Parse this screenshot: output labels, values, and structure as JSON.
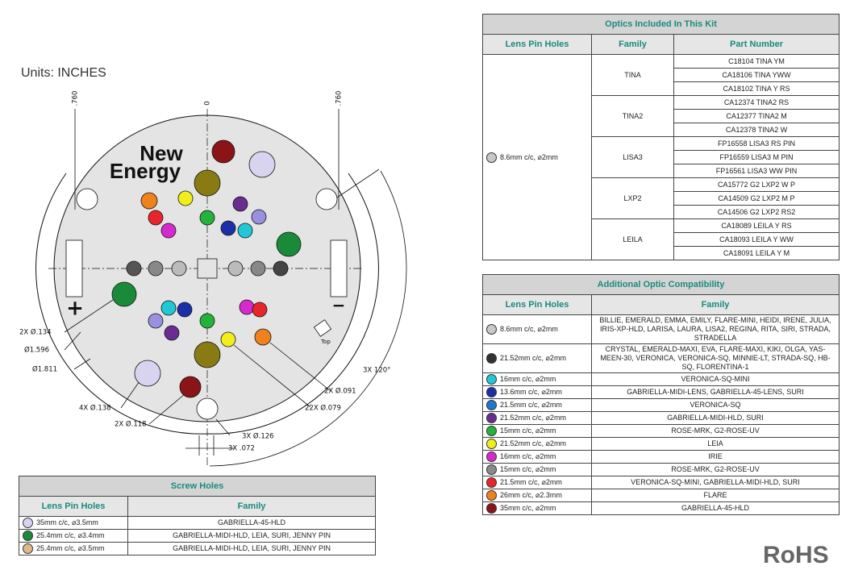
{
  "units": "Units: INCHES",
  "drawing": {
    "logo": [
      "New",
      "Energy"
    ],
    "zero": "0",
    "left_offset": ".760",
    "right_offset": ".760",
    "dims": [
      "2X Ø.134",
      "Ø1.596",
      "Ø1.811",
      "4X Ø.138",
      "2X Ø.118",
      "3X Ø.126",
      "3X .072",
      "22X Ø.079",
      "2X Ø.091",
      "3X 120°"
    ],
    "top_mark": "Top",
    "plus": "+",
    "minus": "−"
  },
  "optics_included": {
    "title": "Optics Included In This Kit",
    "columns": [
      "Lens Pin Holes",
      "Family",
      "Part Number"
    ],
    "lens_pin_holes": {
      "label": "8.6mm c/c, ⌀2mm",
      "swatch": "#c8c8c8"
    },
    "families": [
      {
        "name": "TINA",
        "parts": [
          "C18104 TINA YM",
          "CA18106 TINA YWW",
          "CA18102 TINA Y RS"
        ]
      },
      {
        "name": "TINA2",
        "parts": [
          "CA12374 TINA2 RS",
          "CA12377 TINA2 M",
          "CA12378 TINA2 W"
        ]
      },
      {
        "name": "LISA3",
        "parts": [
          "FP16558 LISA3 RS PIN",
          "FP16559 LISA3 M PIN",
          "FP16561 LISA3 WW PIN"
        ]
      },
      {
        "name": "LXP2",
        "parts": [
          "CA15772 G2 LXP2 W P",
          "CA14509 G2 LXP2 M P",
          "CA14506 G2 LXP2 RS2"
        ]
      },
      {
        "name": "LEILA",
        "parts": [
          "CA18089 LEILA Y RS",
          "CA18093 LEILA Y WW",
          "CA18091 LEILA Y M"
        ]
      }
    ]
  },
  "additional": {
    "title": "Additional Optic Compatibility",
    "columns": [
      "Lens Pin Holes",
      "Family"
    ],
    "rows": [
      {
        "swatch": "#c8c8c8",
        "holes": "8.6mm c/c, ⌀2mm",
        "family": "BILLIE, EMERALD, EMMA, EMILY, FLARE-MINI, HEIDI, IRENE, JULIA, IRIS-XP-HLD, LARISA, LAURA, LISA2, REGINA, RITA, SIRI, STRADA, STRADELLA"
      },
      {
        "swatch": "#333333",
        "holes": "21.52mm c/c, ⌀2mm",
        "family": "CRYSTAL, EMERALD-MAXI, EVA, FLARE-MAXI, KIKI, OLGA, YAS-MEEN-30, VERONICA, VERONICA-SQ, MINNIE-LT, STRADA-SQ, HB-SQ, FLORENTINA-1"
      },
      {
        "swatch": "#22c7d6",
        "holes": "16mm c/c, ⌀2mm",
        "family": "VERONICA-SQ-MINI"
      },
      {
        "swatch": "#1d2fa8",
        "holes": "13.6mm c/c, ⌀2mm",
        "family": "GABRIELLA-MIDI-LENS, GABRIELLA-45-LENS, SURI"
      },
      {
        "swatch": "#1e78d0",
        "holes": "21.5mm c/c, ⌀2mm",
        "family": "VERONICA-SQ"
      },
      {
        "swatch": "#6a2c91",
        "holes": "21.52mm c/c, ⌀2mm",
        "family": "GABRIELLA-MIDI-HLD, SURI"
      },
      {
        "swatch": "#23b33a",
        "holes": "15mm c/c, ⌀2mm",
        "family": "ROSE-MRK, G2-ROSE-UV"
      },
      {
        "swatch": "#f2ee1c",
        "holes": "21.52mm c/c, ⌀2mm",
        "family": "LEIA"
      },
      {
        "swatch": "#d62ad0",
        "holes": "16mm c/c, ⌀2mm",
        "family": "IRIE"
      },
      {
        "swatch": "#8a8a8a",
        "holes": "15mm c/c, ⌀2mm",
        "family": "ROSE-MRK, G2-ROSE-UV"
      },
      {
        "swatch": "#e8262a",
        "holes": "21.5mm c/c, ⌀2mm",
        "family": "VERONICA-SQ-MINI, GABRIELLA-MIDI-HLD, SURI"
      },
      {
        "swatch": "#f0821e",
        "holes": "26mm c/c, ⌀2.3mm",
        "family": "FLARE"
      },
      {
        "swatch": "#8a1418",
        "holes": "35mm c/c, ⌀2mm",
        "family": "GABRIELLA-45-HLD"
      }
    ]
  },
  "screw_holes": {
    "title": "Screw Holes",
    "columns": [
      "Lens Pin Holes",
      "Family"
    ],
    "rows": [
      {
        "swatch": "#d8d4f0",
        "holes": "35mm c/c, ⌀3.5mm",
        "family": "GABRIELLA-45-HLD"
      },
      {
        "swatch": "#1a8a3a",
        "holes": "25.4mm c/c, ⌀3.4mm",
        "family": "GABRIELLA-MIDI-HLD, LEIA, SURI, JENNY PIN"
      },
      {
        "swatch": "#e0b88a",
        "holes": "25.4mm c/c, ⌀3.5mm",
        "family": "GABRIELLA-MIDI-HLD, LEIA, SURI, JENNY PIN"
      }
    ]
  },
  "rohs": "RoHS"
}
